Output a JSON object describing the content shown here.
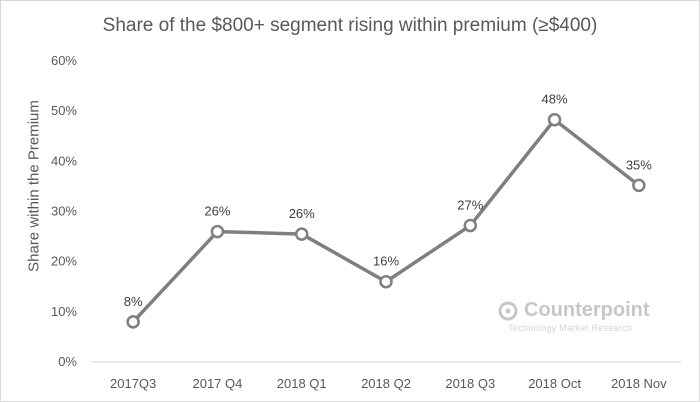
{
  "chart_data": {
    "type": "line",
    "title": "Share of the $800+ segment rising within premium (≥$400)",
    "xlabel": "",
    "ylabel": "Share within the Premium",
    "categories": [
      "2017Q3",
      "2017 Q4",
      "2018 Q1",
      "2018 Q2",
      "2018 Q3",
      "2018 Oct",
      "2018 Nov"
    ],
    "values": [
      8,
      26,
      25.5,
      16,
      27.2,
      48.3,
      35.2
    ],
    "data_labels": [
      "8%",
      "26%",
      "26%",
      "16%",
      "27%",
      "48%",
      "35%"
    ],
    "ylim": [
      0,
      60
    ],
    "yticks": [
      0,
      10,
      20,
      30,
      40,
      50,
      60
    ],
    "ytick_labels": [
      "0%",
      "10%",
      "20%",
      "30%",
      "40%",
      "50%",
      "60%"
    ],
    "grid": false,
    "legend": "none",
    "line_color": "#7f7f7f",
    "marker_fill": "#ffffff"
  },
  "watermark": {
    "name": "Counterpoint",
    "tagline": "Technology Market Research"
  }
}
